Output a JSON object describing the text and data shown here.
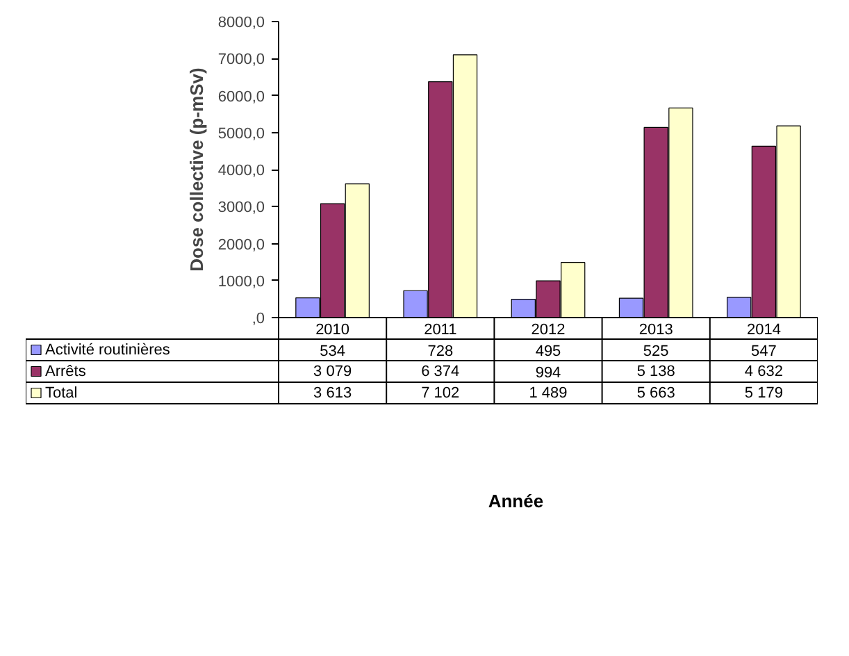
{
  "chart_data": {
    "type": "bar",
    "annotations": [
      "Année"
    ],
    "ylabel": "Dose collective (p-mSv)",
    "legend": "bottom left",
    "categories": [
      "2010",
      "2011",
      "2012",
      "2013",
      "2014"
    ],
    "series": [
      {
        "name": "Activité routinières",
        "color": "#9999ff",
        "values": [
          534,
          728,
          495,
          525,
          547
        ],
        "value_labels": [
          "534",
          "728",
          "495",
          "525",
          "547"
        ]
      },
      {
        "name": "Arrêts",
        "color": "#993366",
        "values": [
          3079,
          6374,
          994,
          5138,
          4632
        ],
        "value_labels": [
          "3 079",
          "6 374",
          "994",
          "5 138",
          "4 632"
        ]
      },
      {
        "name": "Total",
        "color": "#ffffcc",
        "values": [
          3613,
          7102,
          1489,
          5663,
          5179
        ],
        "value_labels": [
          "3 613",
          "7 102",
          "1 489",
          "5 663",
          "5 179"
        ]
      }
    ],
    "ylim": [
      0,
      8000
    ],
    "yticks": [
      {
        "value": 0,
        "label": ",0"
      },
      {
        "value": 1000,
        "label": "1000,0"
      },
      {
        "value": 2000,
        "label": "2000,0"
      },
      {
        "value": 3000,
        "label": "3000,0"
      },
      {
        "value": 4000,
        "label": "4000,0"
      },
      {
        "value": 5000,
        "label": "5000,0"
      },
      {
        "value": 6000,
        "label": "6000,0"
      },
      {
        "value": 7000,
        "label": "7000,0"
      },
      {
        "value": 8000,
        "label": "8000,0"
      }
    ]
  }
}
